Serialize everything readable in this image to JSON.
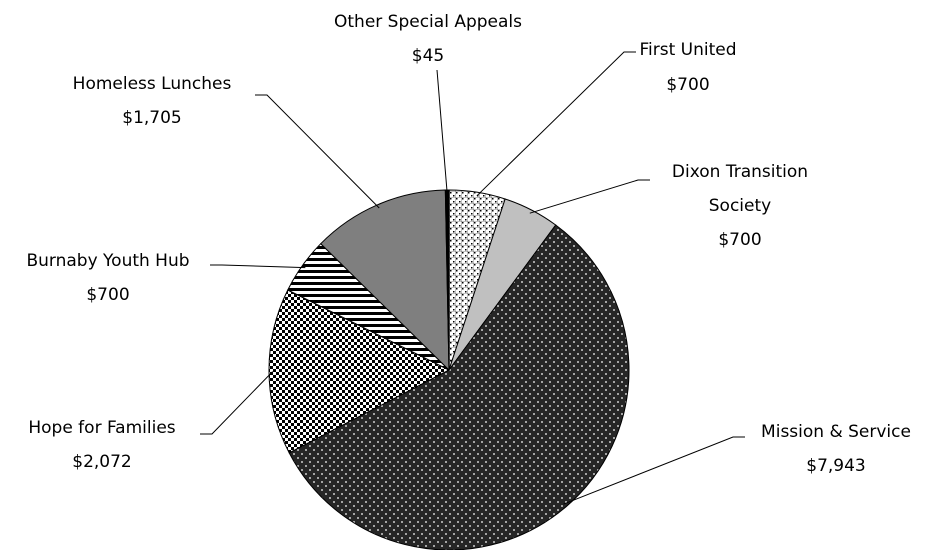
{
  "chart_data": {
    "type": "pie",
    "categories": [
      "First United",
      "Dixon Transition Society",
      "Mission & Service",
      "Hope for Families",
      "Burnaby Youth Hub",
      "Homeless Lunches",
      "Other Special Appeals"
    ],
    "values": [
      700,
      700,
      7943,
      2072,
      700,
      1705,
      45
    ],
    "value_labels": [
      "$700",
      "$700",
      "$7,943",
      "$2,072",
      "$700",
      "$1,705",
      "$45"
    ],
    "colors": [
      "#ffffff",
      "#c0c0c0",
      "#262626",
      "#ffffff",
      "#ffffff",
      "#7f7f7f",
      "#000000"
    ]
  }
}
